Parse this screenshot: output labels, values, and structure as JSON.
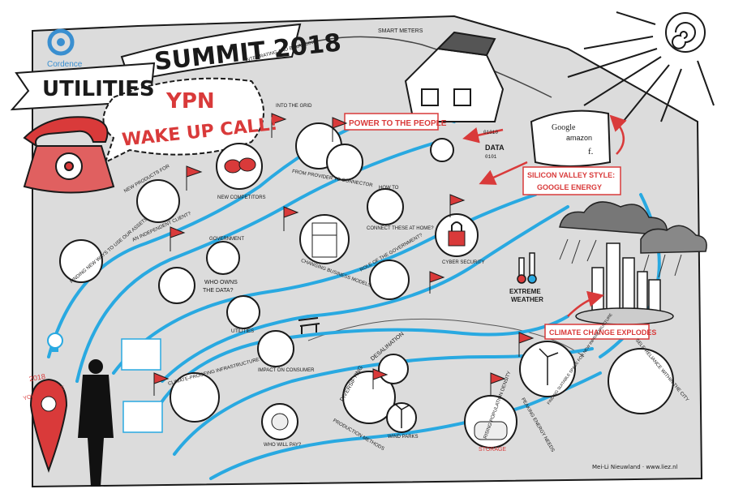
{
  "brand": {
    "name": "Cordence"
  },
  "banner": {
    "line1": "SUMMIT 2018",
    "line2": "UTILITIES"
  },
  "headline": {
    "line1": "YPN",
    "line2": "WAKE UP CALL!"
  },
  "captions": {
    "power": "POWER TO THE PEOPLE",
    "silicon1": "SILICON VALLEY STYLE:",
    "silicon2": "GOOGLE ENERGY",
    "climate": "CLIMATE CHANGE EXPLODES",
    "extreme1": "EXTREME",
    "extreme2": "WEATHER",
    "smart_meters": "SMART METERS",
    "integrating": "INTEGRATING AND BALANCING",
    "into_grid": "INTO THE GRID",
    "provider": "FROM PROVIDER TO CONNECTOR",
    "new_competitors": "NEW COMPETITORS",
    "new_products1": "NEW PRODUCTS FOR",
    "new_products2": "AN INDEPENDENT CLIENT?",
    "finding_ways": "FINDING NEW WAYS TO USE OUR ASSETS",
    "changing": "CHANGING BUSINESS MODELS",
    "connect1": "HOW TO",
    "connect2": "CONNECT THESE AT HOME?",
    "cyber": "CYBER SECURITY",
    "government_role": "ROLE OF THE GOVERNMENT?",
    "government": "GOVERNMENT",
    "who_owns1": "WHO OWNS",
    "who_owns2": "THE DATA?",
    "utilities": "UTILITIES",
    "climate_proofing": "CLIMATE-PROOFING INFRASTRUCTURE",
    "impact": "IMPACT ON CONSUMER",
    "who_pays": "WHO WILL PAY?",
    "diversifying": "DIVERSIFYING",
    "desalination": "DESALINATION",
    "production": "PRODUCTION METHODS",
    "wind": "WIND PARKS",
    "storage": "STORAGE",
    "rising": "RISING POPULATION DENSITY",
    "peaking": "PEAKING ENERGY NEEDS",
    "finding_space": "FINDING SUITABLE SPACE FOR NEW INFRASTRUCTURE",
    "self_reliance": "SELF-RELIANCE WITHIN THE CITY",
    "data": "DATA",
    "bits1": "01010",
    "bits2": "0101",
    "you_are_here": "YOU ARE HERE",
    "year": "2018",
    "brands_google": "Google",
    "brands_amazon": "amazon",
    "brands_f": "f.",
    "credit": "Mei-Li Nieuwland · www.liez.nl"
  },
  "colors": {
    "road": "#29a9e1",
    "accent": "#d93a3a",
    "ink": "#1a1a1a",
    "paper": "#dcdcdc",
    "brand": "#3a8fd0"
  }
}
